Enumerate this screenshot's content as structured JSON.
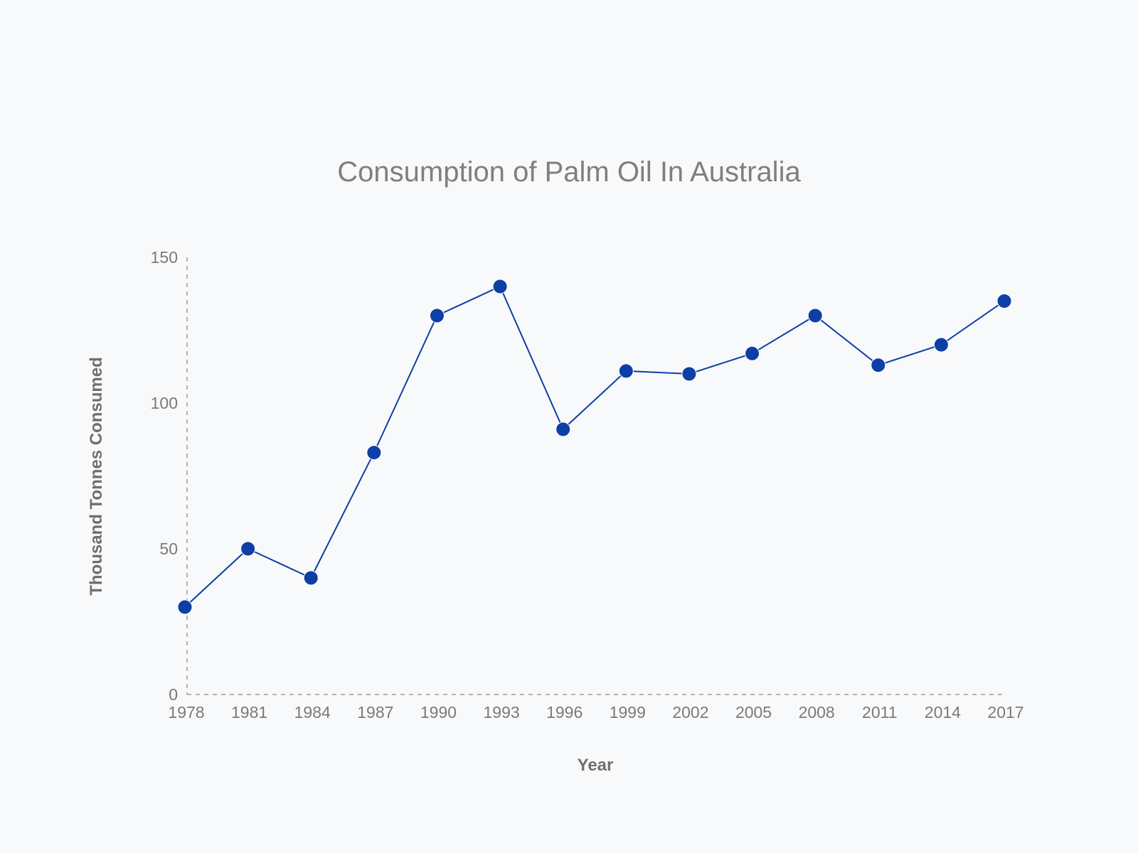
{
  "chart_data": {
    "type": "line",
    "title": "Consumption of Palm Oil In Australia",
    "xlabel": "Year",
    "ylabel": "Thousand Tonnes Consumed",
    "x": [
      "1978",
      "1981",
      "1984",
      "1987",
      "1990",
      "1993",
      "1996",
      "1999",
      "2002",
      "2005",
      "2008",
      "2011",
      "2014",
      "2017"
    ],
    "series": [
      {
        "values": [
          30,
          50,
          40,
          83,
          130,
          140,
          91,
          111,
          110,
          117,
          130,
          113,
          120,
          135
        ],
        "color": "#0d3fa6"
      }
    ],
    "ylim": [
      0,
      150
    ],
    "yticks": [
      0,
      50,
      100,
      150
    ],
    "grid": false,
    "legend": "none"
  }
}
